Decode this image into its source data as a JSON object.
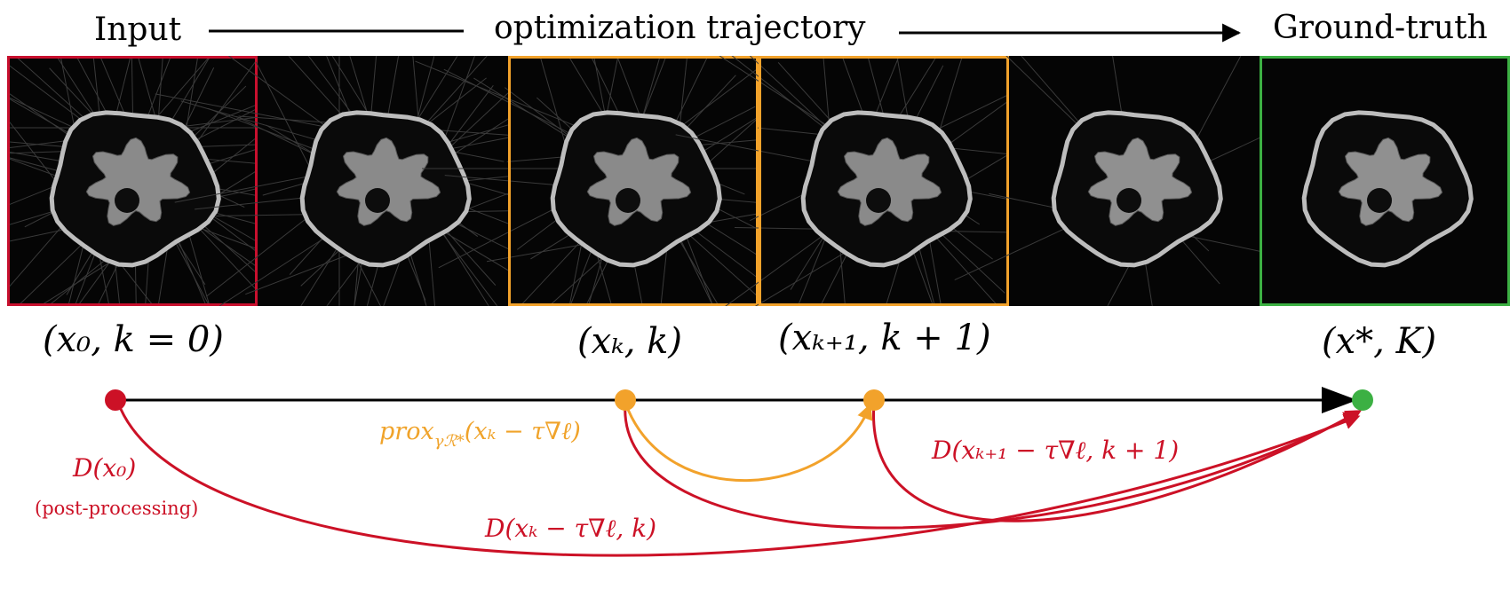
{
  "header": {
    "input": "Input",
    "trajectory": "optimization trajectory",
    "ground_truth": "Ground-truth"
  },
  "frames": [
    {
      "border": "#c8102e",
      "noise": 0.9
    },
    {
      "border": "none",
      "noise": 0.75
    },
    {
      "border": "#f2a22b",
      "noise": 0.6
    },
    {
      "border": "#f2a22b",
      "noise": 0.45
    },
    {
      "border": "none",
      "noise": 0.15
    },
    {
      "border": "#3cb043",
      "noise": 0.0
    }
  ],
  "state_labels": {
    "x0": "(x₀, k = 0)",
    "xk": "(xₖ, k)",
    "xk1": "(xₖ₊₁, k + 1)",
    "xstar": "(x*, K)"
  },
  "nodes": {
    "start_color": "#cc1126",
    "mid_color": "#f2a22b",
    "end_color": "#3cb043"
  },
  "edge_labels": {
    "prox": "prox",
    "prox_sub": "γℛ*",
    "prox_arg": "(xₖ − τ∇ℓ)",
    "d_x0": "D(x₀)",
    "post_processing": "(post-processing)",
    "d_xk": "D(xₖ − τ∇ℓ, k)",
    "d_xk1": "D(xₖ₊₁ − τ∇ℓ, k + 1)"
  },
  "colors": {
    "red": "#cc1126",
    "orange": "#f2a22b",
    "green": "#3cb043"
  }
}
